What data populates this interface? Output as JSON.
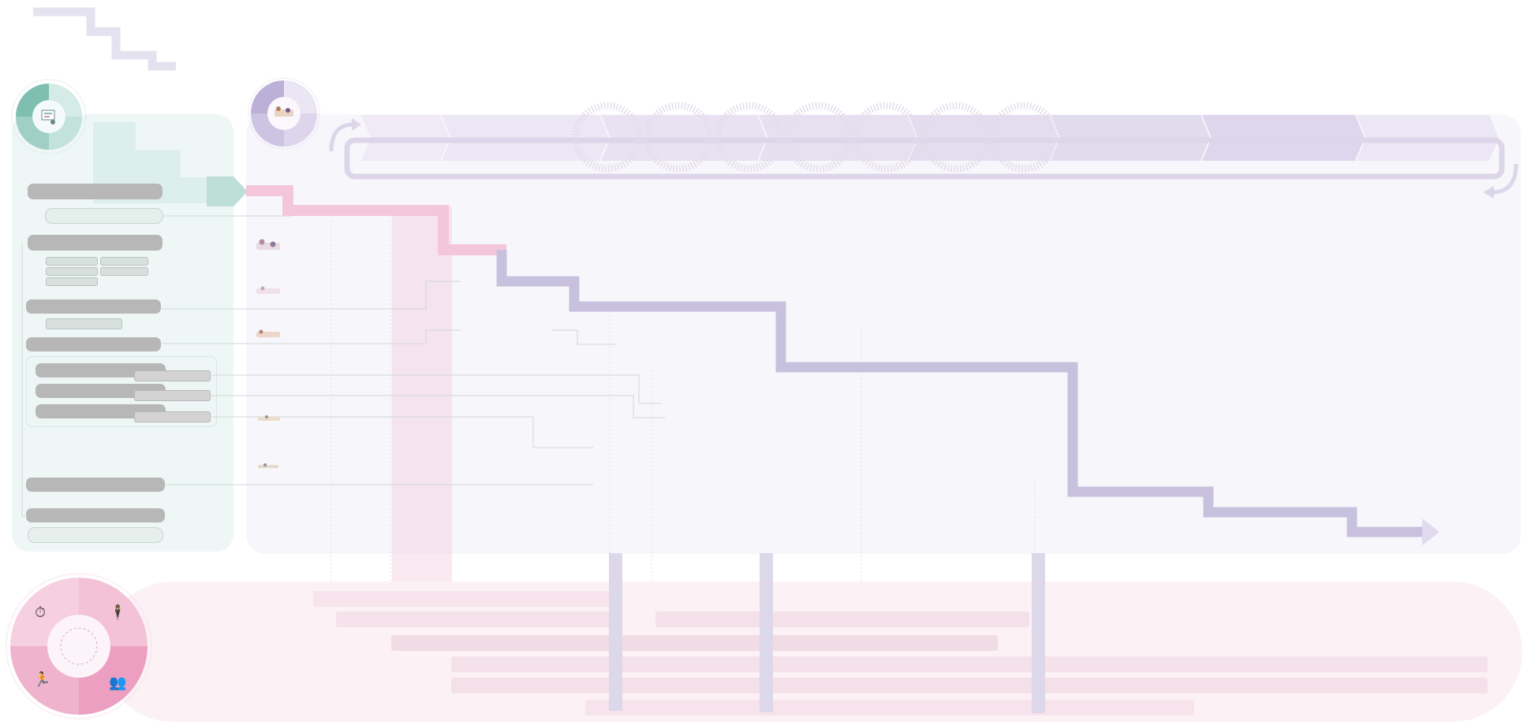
{
  "colors": {
    "teal_panel": "#eef7f5",
    "teal_accent": "#b7d9d2",
    "lavender_panel": "#f7f6fb",
    "lavender_accent": "#c9c3df",
    "pink_accent": "#f2c5da",
    "pink_band": "#fcf2f6",
    "grey_bar": "#b7b7b7"
  },
  "icons": {
    "teal_badge": "chart-doc-icon",
    "lavender_badge": "illustration-icon",
    "quad_top_left": "stopwatch-icon",
    "quad_top_right": "person-icon",
    "quad_bottom_left": "runner-icon",
    "quad_bottom_right": "team-icon",
    "row_thumb_1": "illustration-icon",
    "row_thumb_2": "illustration-icon",
    "row_thumb_3": "illustration-icon",
    "row_thumb_4": "illustration-icon",
    "row_thumb_5": "illustration-icon",
    "arrow_loop_start": "curved-arrow-icon",
    "arrow_loop_end": "curved-arrow-icon"
  },
  "glyphs": {
    "stopwatch": "⏱",
    "person": "🕴",
    "runner": "🏃",
    "team": "👥"
  }
}
